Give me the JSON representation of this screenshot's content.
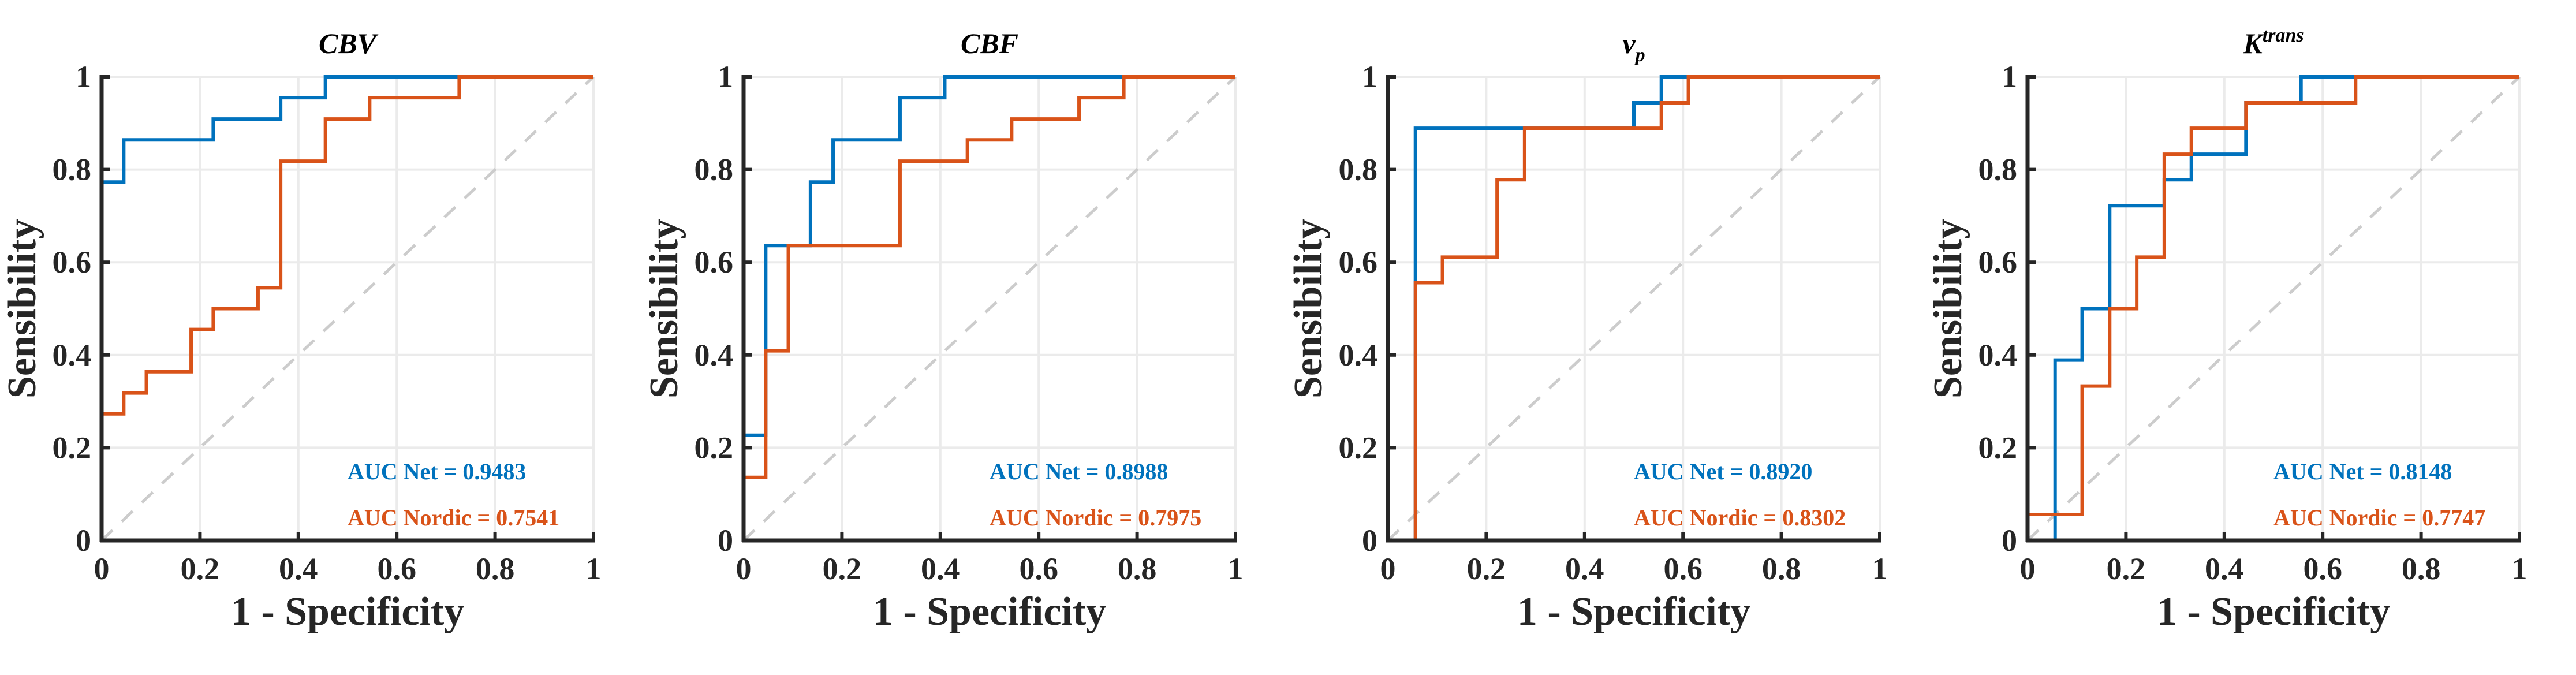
{
  "colors": {
    "net": "#0072BD",
    "nordic": "#D95319",
    "chance": "#CCCCCC",
    "grid": "#EBEBEB",
    "axis": "#262626"
  },
  "chart_data": [
    {
      "type": "line",
      "title": {
        "main": "CBV",
        "sub": "",
        "sup": ""
      },
      "xlabel": "1 - Specificity",
      "ylabel": "Sensibility",
      "xlim": [
        0,
        1
      ],
      "ylim": [
        0,
        1
      ],
      "grid": true,
      "xticks": [
        "0",
        "0.2",
        "0.4",
        "0.6",
        "0.8",
        "1"
      ],
      "yticks": [
        "0",
        "0.2",
        "0.4",
        "0.6",
        "0.8",
        "1"
      ],
      "annotations": [
        "AUC Net = 0.9483",
        "AUC Nordic = 0.7541"
      ],
      "series": [
        {
          "name": "Net",
          "auc": 0.9483,
          "x": [
            0,
            0,
            0.045,
            0.045,
            0.227,
            0.227,
            0.364,
            0.364,
            0.455,
            0.455,
            1
          ],
          "y": [
            0,
            0.773,
            0.773,
            0.864,
            0.864,
            0.909,
            0.909,
            0.955,
            0.955,
            1,
            1
          ]
        },
        {
          "name": "Nordic",
          "auc": 0.7541,
          "x": [
            0,
            0,
            0.045,
            0.045,
            0.091,
            0.091,
            0.182,
            0.182,
            0.227,
            0.227,
            0.318,
            0.318,
            0.364,
            0.364,
            0.455,
            0.455,
            0.545,
            0.545,
            0.727,
            0.727,
            1
          ],
          "y": [
            0,
            0.273,
            0.273,
            0.318,
            0.318,
            0.364,
            0.364,
            0.455,
            0.455,
            0.5,
            0.5,
            0.545,
            0.545,
            0.818,
            0.818,
            0.909,
            0.909,
            0.955,
            0.955,
            1,
            1
          ]
        }
      ]
    },
    {
      "type": "line",
      "title": {
        "main": "CBF",
        "sub": "",
        "sup": ""
      },
      "xlabel": "1 - Specificity",
      "ylabel": "Sensibility",
      "xlim": [
        0,
        1
      ],
      "ylim": [
        0,
        1
      ],
      "grid": true,
      "xticks": [
        "0",
        "0.2",
        "0.4",
        "0.6",
        "0.8",
        "1"
      ],
      "yticks": [
        "0",
        "0.2",
        "0.4",
        "0.6",
        "0.8",
        "1"
      ],
      "annotations": [
        "AUC Net = 0.8988",
        "AUC Nordic = 0.7975"
      ],
      "series": [
        {
          "name": "Net",
          "auc": 0.8988,
          "x": [
            0,
            0,
            0.045,
            0.045,
            0.136,
            0.136,
            0.182,
            0.182,
            0.318,
            0.318,
            0.409,
            0.409,
            1
          ],
          "y": [
            0.136,
            0.227,
            0.227,
            0.636,
            0.636,
            0.773,
            0.773,
            0.864,
            0.864,
            0.955,
            0.955,
            1,
            1
          ]
        },
        {
          "name": "Nordic",
          "auc": 0.7975,
          "x": [
            0,
            0,
            0.045,
            0.045,
            0.091,
            0.091,
            0.318,
            0.318,
            0.455,
            0.455,
            0.545,
            0.545,
            0.682,
            0.682,
            0.773,
            0.773,
            1
          ],
          "y": [
            0,
            0.136,
            0.136,
            0.409,
            0.409,
            0.636,
            0.636,
            0.818,
            0.818,
            0.864,
            0.864,
            0.909,
            0.909,
            0.955,
            0.955,
            1,
            1
          ]
        }
      ]
    },
    {
      "type": "line",
      "title": {
        "main": "v",
        "sub": "p",
        "sup": ""
      },
      "xlabel": "1 - Specificity",
      "ylabel": "Sensibility",
      "xlim": [
        0,
        1
      ],
      "ylim": [
        0,
        1
      ],
      "grid": true,
      "xticks": [
        "0",
        "0.2",
        "0.4",
        "0.6",
        "0.8",
        "1"
      ],
      "yticks": [
        "0",
        "0.2",
        "0.4",
        "0.6",
        "0.8",
        "1"
      ],
      "annotations": [
        "AUC Net = 0.8920",
        "AUC Nordic = 0.8302"
      ],
      "series": [
        {
          "name": "Net",
          "auc": 0.892,
          "x": [
            0,
            0.056,
            0.056,
            0.5,
            0.5,
            0.556,
            0.556,
            1
          ],
          "y": [
            0,
            0,
            0.889,
            0.889,
            0.944,
            0.944,
            1,
            1
          ]
        },
        {
          "name": "Nordic",
          "auc": 0.8302,
          "x": [
            0,
            0.056,
            0.056,
            0.111,
            0.111,
            0.222,
            0.222,
            0.278,
            0.278,
            0.556,
            0.556,
            0.611,
            0.611,
            1
          ],
          "y": [
            0,
            0,
            0.556,
            0.556,
            0.611,
            0.611,
            0.778,
            0.778,
            0.889,
            0.889,
            0.944,
            0.944,
            1,
            1
          ]
        }
      ]
    },
    {
      "type": "line",
      "title": {
        "main": "K",
        "sub": "",
        "sup": "trans"
      },
      "xlabel": "1 - Specificity",
      "ylabel": "Sensibility",
      "xlim": [
        0,
        1
      ],
      "ylim": [
        0,
        1
      ],
      "grid": true,
      "xticks": [
        "0",
        "0.2",
        "0.4",
        "0.6",
        "0.8",
        "1"
      ],
      "yticks": [
        "0",
        "0.2",
        "0.4",
        "0.6",
        "0.8",
        "1"
      ],
      "annotations": [
        "AUC Net = 0.8148",
        "AUC Nordic = 0.7747"
      ],
      "series": [
        {
          "name": "Net",
          "auc": 0.8148,
          "x": [
            0,
            0.056,
            0.056,
            0.111,
            0.111,
            0.167,
            0.167,
            0.278,
            0.278,
            0.333,
            0.333,
            0.444,
            0.444,
            0.556,
            0.556,
            1
          ],
          "y": [
            0,
            0,
            0.389,
            0.389,
            0.5,
            0.5,
            0.722,
            0.722,
            0.778,
            0.778,
            0.833,
            0.833,
            0.944,
            0.944,
            1,
            1
          ]
        },
        {
          "name": "Nordic",
          "auc": 0.7747,
          "x": [
            0,
            0,
            0.111,
            0.111,
            0.167,
            0.167,
            0.222,
            0.222,
            0.278,
            0.278,
            0.333,
            0.333,
            0.444,
            0.444,
            0.667,
            0.667,
            1
          ],
          "y": [
            0,
            0.056,
            0.056,
            0.333,
            0.333,
            0.5,
            0.5,
            0.611,
            0.611,
            0.833,
            0.833,
            0.889,
            0.889,
            0.944,
            0.944,
            1,
            1
          ]
        }
      ]
    }
  ]
}
